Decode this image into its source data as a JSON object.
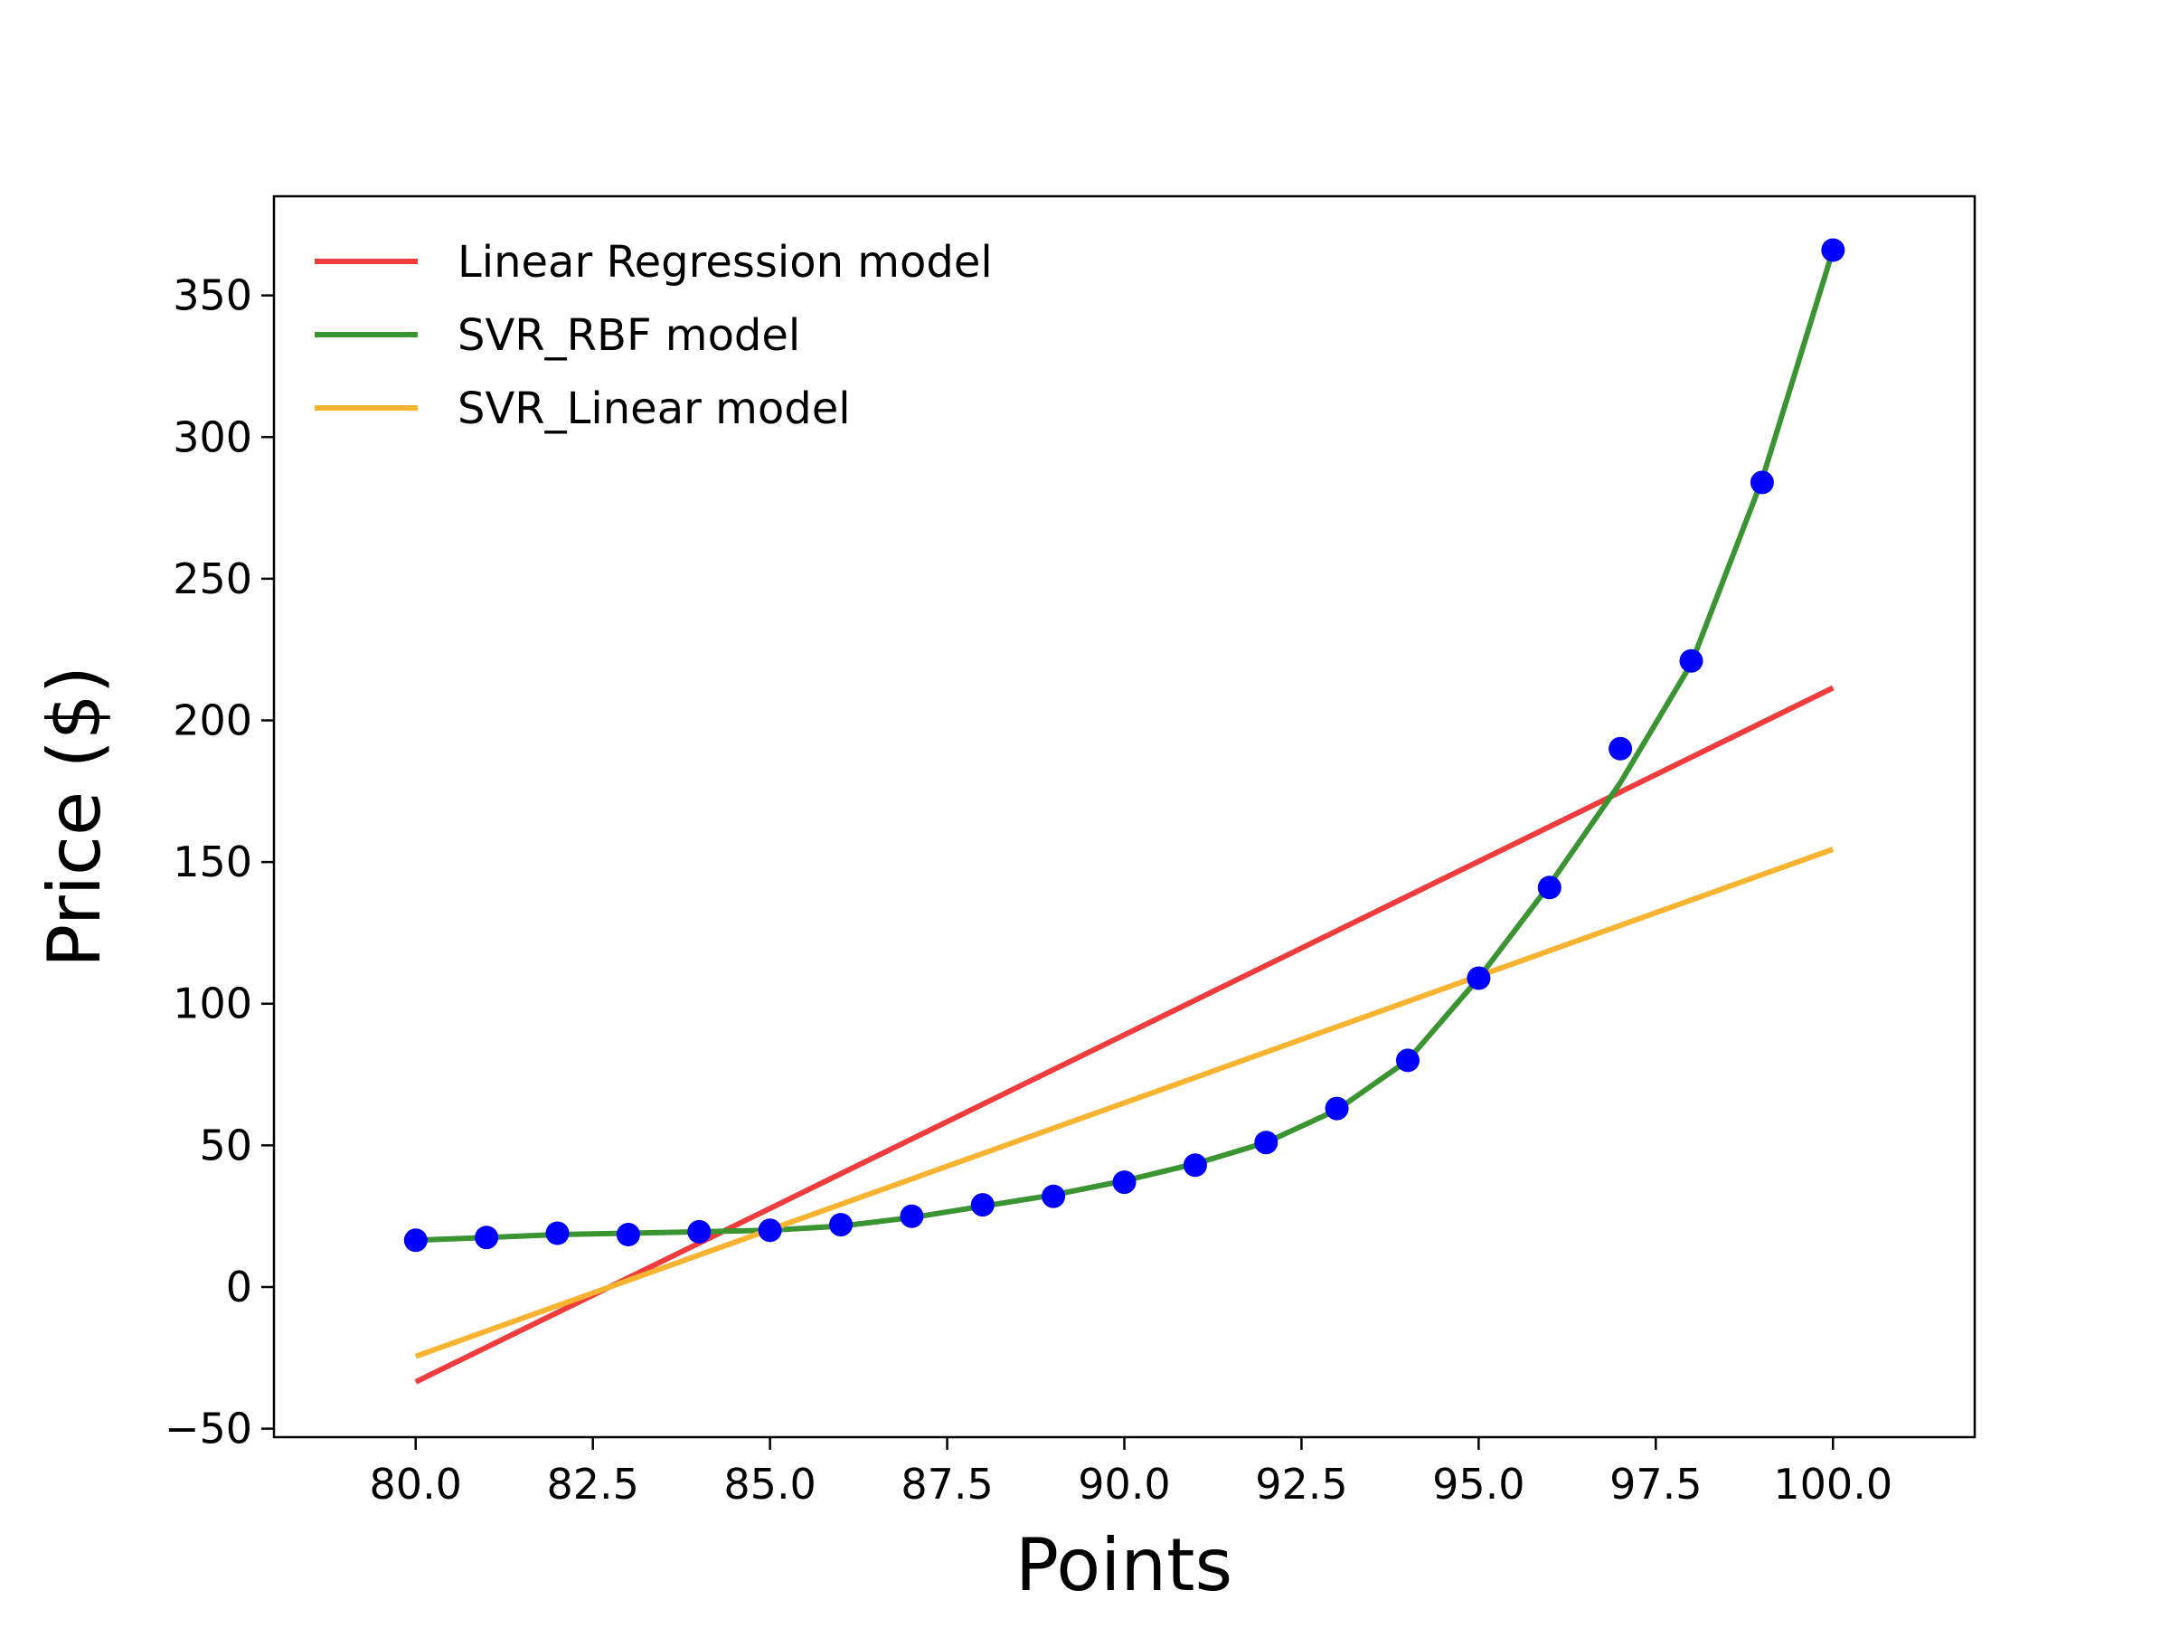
{
  "chart_data": {
    "type": "line",
    "title": "",
    "xlabel": "Points",
    "ylabel": "Price ($)",
    "xlim": [
      78,
      102
    ],
    "ylim": [
      -53,
      385
    ],
    "xticks": [
      80.0,
      82.5,
      85.0,
      87.5,
      90.0,
      92.5,
      95.0,
      97.5,
      100.0
    ],
    "xtick_labels": [
      "80.0",
      "82.5",
      "85.0",
      "87.5",
      "90.0",
      "92.5",
      "95.0",
      "97.5",
      "100.0"
    ],
    "yticks": [
      -50,
      0,
      50,
      100,
      150,
      200,
      250,
      300,
      350
    ],
    "ytick_labels": [
      "−50",
      "0",
      "50",
      "100",
      "150",
      "200",
      "250",
      "300",
      "350"
    ],
    "grid": false,
    "legend_position": "top-left",
    "scatter": {
      "color": "#0000ff",
      "x": [
        80,
        81,
        82,
        83,
        84,
        85,
        86,
        87,
        88,
        89,
        90,
        91,
        92,
        93,
        94,
        95,
        96,
        97,
        98,
        99,
        100
      ],
      "y": [
        16.5,
        17.5,
        19,
        18.5,
        19.5,
        20,
        22,
        25,
        29,
        32,
        37,
        43,
        51,
        63,
        80,
        109,
        141,
        190,
        221,
        284,
        366
      ]
    },
    "series": [
      {
        "name": "Linear Regression model",
        "color": "#f03c3c",
        "x": [
          80,
          100
        ],
        "y": [
          -33.5,
          211.5
        ]
      },
      {
        "name": "SVR_RBF model",
        "color": "#3a9432",
        "x": [
          80,
          81,
          82,
          83,
          84,
          85,
          86,
          87,
          88,
          89,
          90,
          91,
          92,
          93,
          94,
          95,
          96,
          97,
          98,
          99,
          100
        ],
        "y": [
          16.5,
          17.5,
          18.5,
          19,
          19.5,
          20,
          21.5,
          24.5,
          28.5,
          32.5,
          37.5,
          43.5,
          51,
          62.5,
          80,
          109,
          142,
          178,
          220,
          285,
          366
        ]
      },
      {
        "name": "SVR_Linear model",
        "color": "#f8b330",
        "x": [
          80,
          100
        ],
        "y": [
          -24.5,
          154.5
        ]
      }
    ]
  }
}
